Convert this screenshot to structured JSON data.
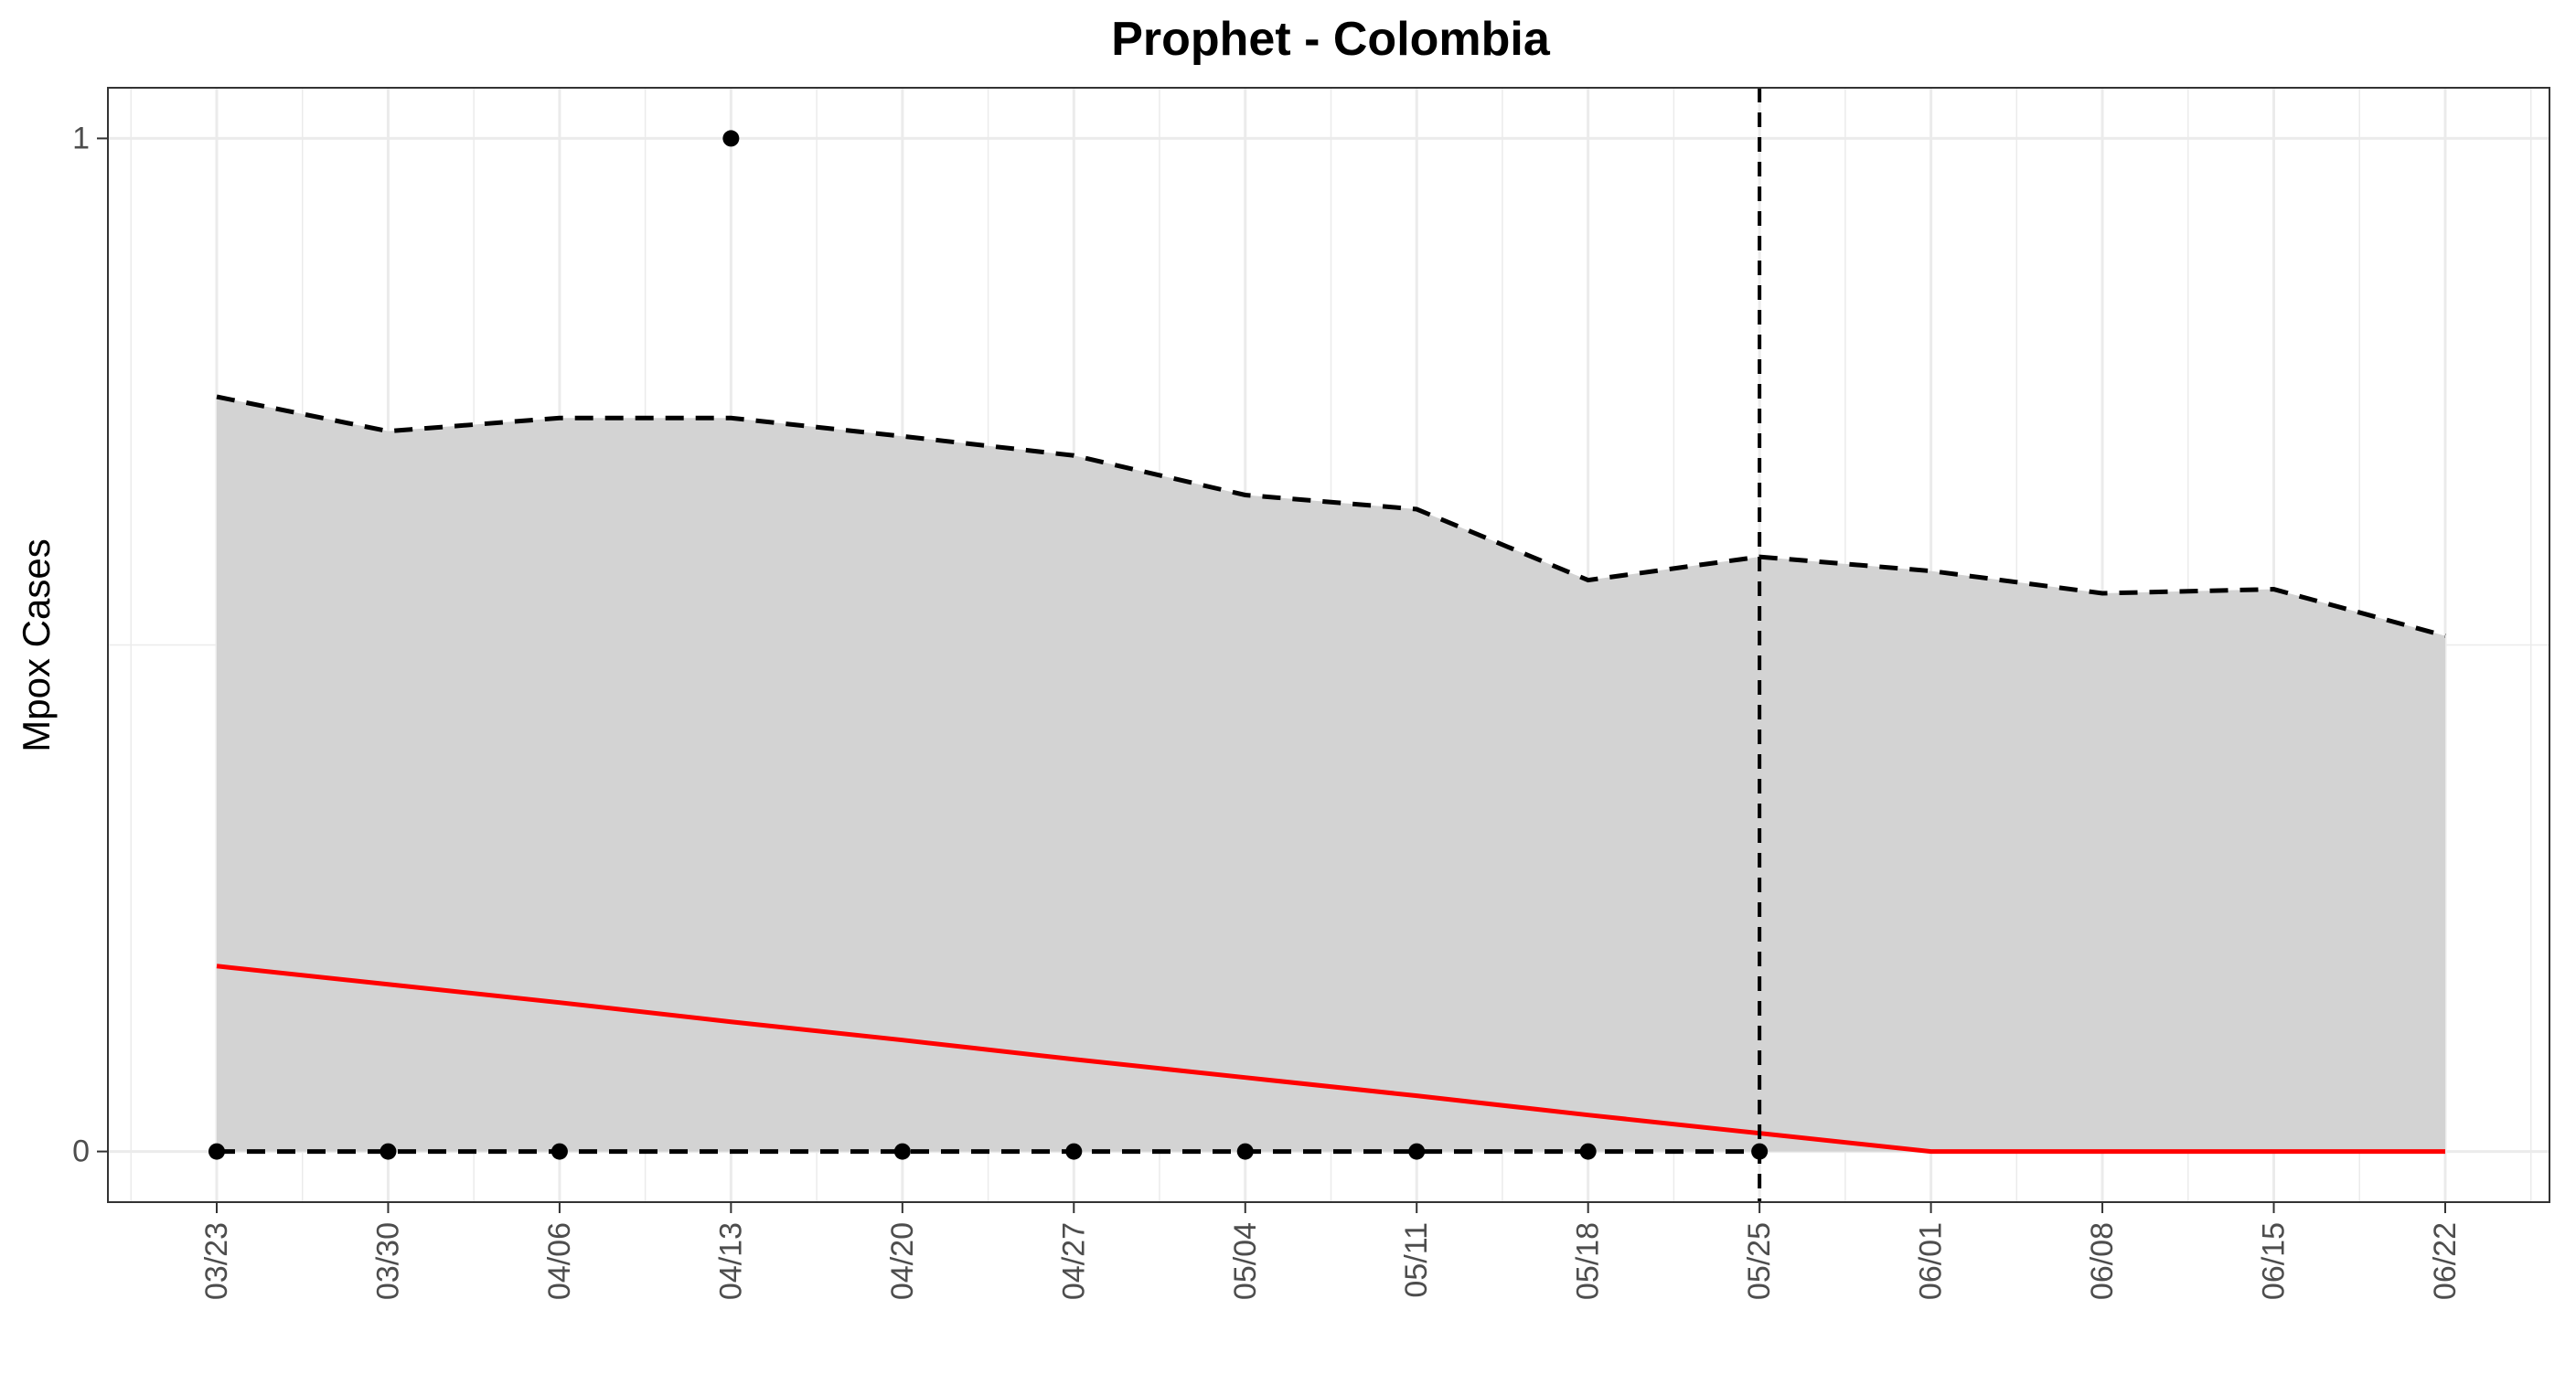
{
  "chart_data": {
    "type": "line",
    "title": "Prophet - Colombia",
    "xlabel": "",
    "ylabel": "Mpox Cases",
    "x": [
      "03/23",
      "03/30",
      "04/06",
      "04/13",
      "04/20",
      "04/27",
      "05/04",
      "05/11",
      "05/18",
      "05/25",
      "06/01",
      "06/08",
      "06/15",
      "06/22"
    ],
    "ylim": [
      -0.05,
      1.05
    ],
    "y_ticks": [
      "0",
      "1"
    ],
    "y_tick_values": [
      0,
      1
    ],
    "grid": true,
    "legend": "none",
    "forecast_start": "05/25",
    "colors": {
      "interval_fill": "#d3d3d3",
      "forecast_line": "#ff0000",
      "bounds": "#000000",
      "points": "#000000",
      "grid": "#ebebeb"
    },
    "series": [
      {
        "role": "upper_bound",
        "style": "dashed",
        "values": [
          0.745,
          0.711,
          0.724,
          0.724,
          0.706,
          0.687,
          0.648,
          0.634,
          0.564,
          0.587,
          0.573,
          0.551,
          0.555,
          0.509
        ]
      },
      {
        "role": "lower_bound",
        "style": "dashed",
        "values": [
          0,
          0,
          0,
          0,
          0,
          0,
          0,
          0,
          0,
          0,
          0,
          0,
          0,
          0
        ]
      },
      {
        "role": "forecast",
        "style": "solid",
        "values": [
          0.183,
          0.165,
          0.147,
          0.128,
          0.11,
          0.091,
          0.073,
          0.055,
          0.036,
          0.018,
          0,
          0,
          0,
          0
        ]
      },
      {
        "role": "observed",
        "style": "points",
        "x": [
          "03/23",
          "03/30",
          "04/06",
          "04/13",
          "04/20",
          "04/27",
          "05/04",
          "05/11",
          "05/18",
          "05/25"
        ],
        "values": [
          0,
          0,
          0,
          1,
          0,
          0,
          0,
          0,
          0,
          0
        ]
      }
    ]
  }
}
